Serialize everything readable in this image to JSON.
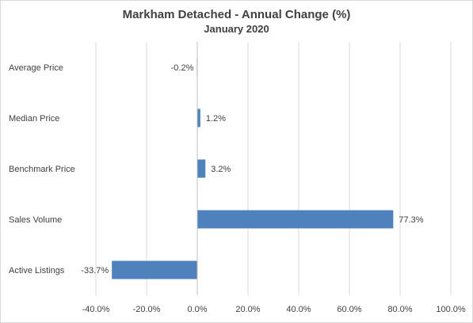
{
  "chart_data": {
    "type": "bar",
    "orientation": "horizontal",
    "title": "Markham Detached - Annual Change (%)",
    "subtitle": "January 2020",
    "categories": [
      "Average Price",
      "Median Price",
      "Benchmark Price",
      "Sales Volume",
      "Active Listings"
    ],
    "values": [
      -0.2,
      1.2,
      3.2,
      77.3,
      -33.7
    ],
    "data_labels": [
      "-0.2%",
      "1.2%",
      "3.2%",
      "77.3%",
      "-33.7%"
    ],
    "xlim": [
      -40,
      100
    ],
    "x_ticks": [
      "-40.0%",
      "-20.0%",
      "0.0%",
      "20.0%",
      "40.0%",
      "60.0%",
      "80.0%",
      "100.0%"
    ],
    "grid": "vertical",
    "legend": "none",
    "colors": {
      "bar": "#4f81bd",
      "grid": "#d9d9d9",
      "text": "#404040"
    }
  }
}
